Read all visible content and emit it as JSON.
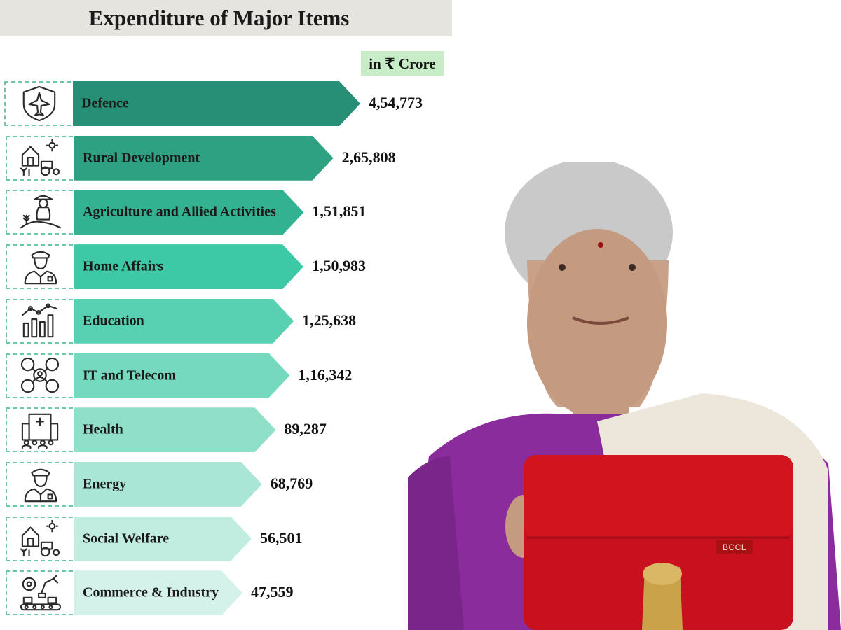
{
  "chart_data": {
    "type": "bar",
    "orientation": "horizontal",
    "title": "Expenditure of Major Items",
    "unit_label": "in ₹ Crore",
    "categories": [
      "Defence",
      "Rural Development",
      "Agriculture and Allied Activities",
      "Home Affairs",
      "Education",
      "IT and Telecom",
      "Health",
      "Energy",
      "Social Welfare",
      "Commerce & Industry"
    ],
    "values": [
      454773,
      265808,
      151851,
      150983,
      125638,
      116342,
      89287,
      68769,
      56501,
      47559
    ],
    "value_labels": [
      "4,54,773",
      "2,65,808",
      "1,51,851",
      "1,50,983",
      "1,25,638",
      "1,16,342",
      "89,287",
      "68,769",
      "56,501",
      "47,559"
    ],
    "icons": [
      "shield-jet-icon",
      "house-tractor-icon",
      "farmer-icon",
      "officer-icon",
      "bar-chart-icon",
      "network-users-icon",
      "hospital-building-icon",
      "officer-icon",
      "house-tractor-icon",
      "factory-robot-arm-icon"
    ],
    "bar_colors": [
      "#278f76",
      "#2fa183",
      "#33b292",
      "#3ec9a6",
      "#58d1b2",
      "#74d9be",
      "#8fdfc9",
      "#a9e6d5",
      "#c1ede0",
      "#d4f2e9"
    ],
    "legend": "none",
    "grid": false
  },
  "photo": {
    "badge": "BCCL",
    "colors": {
      "saree": "#8b2c9c",
      "briefcase": "#c8101e",
      "emblem": "#c9a24a"
    }
  }
}
